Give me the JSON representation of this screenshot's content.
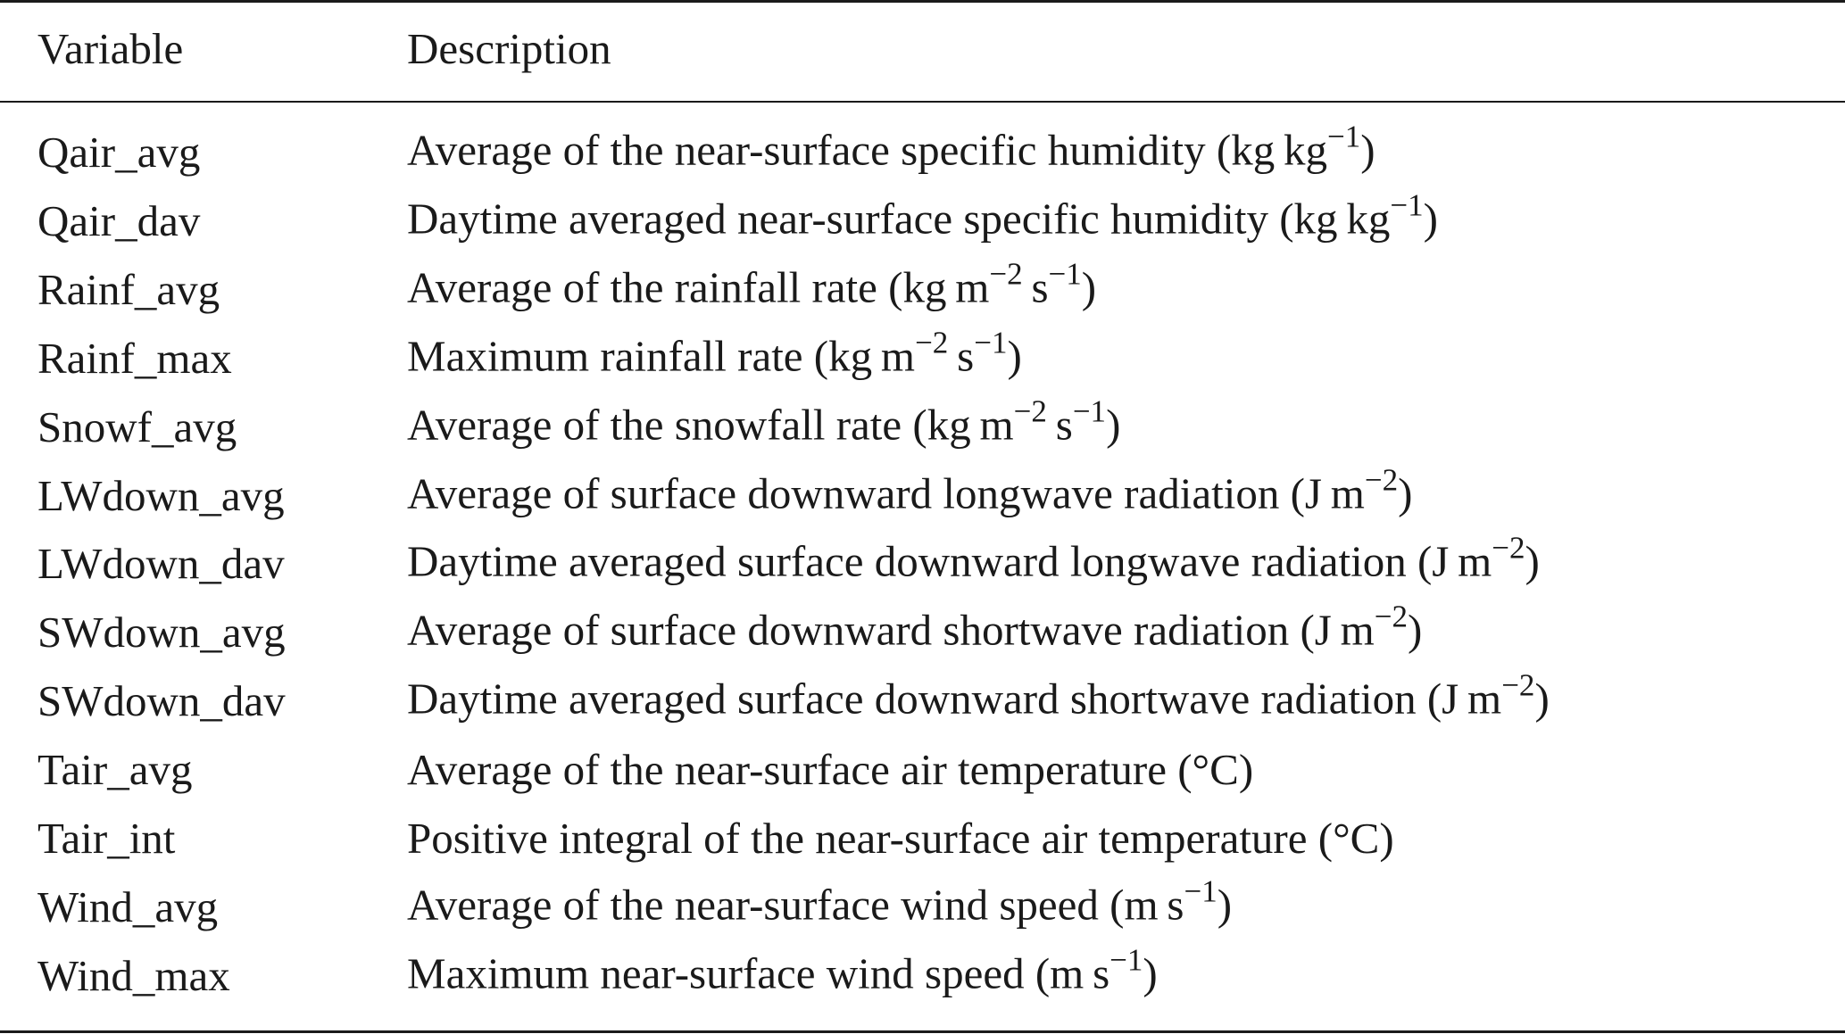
{
  "table": {
    "header": [
      "Variable",
      "Description"
    ],
    "rows": [
      {
        "variable": "Qair_avg",
        "description": [
          {
            "text": "Average of the near-surface specific humidity (kg kg"
          },
          {
            "sup": "−1"
          },
          {
            "text": ")"
          }
        ]
      },
      {
        "variable": "Qair_dav",
        "description": [
          {
            "text": "Daytime averaged near-surface specific humidity (kg kg"
          },
          {
            "sup": "−1"
          },
          {
            "text": ")"
          }
        ]
      },
      {
        "variable": "Rainf_avg",
        "description": [
          {
            "text": "Average of the rainfall rate (kg m"
          },
          {
            "sup": "−2"
          },
          {
            "text": " s"
          },
          {
            "sup": "−1"
          },
          {
            "text": ")"
          }
        ]
      },
      {
        "variable": "Rainf_max",
        "description": [
          {
            "text": "Maximum rainfall rate (kg m"
          },
          {
            "sup": "−2"
          },
          {
            "text": " s"
          },
          {
            "sup": "−1"
          },
          {
            "text": ")"
          }
        ]
      },
      {
        "variable": "Snowf_avg",
        "description": [
          {
            "text": "Average of the snowfall rate (kg m"
          },
          {
            "sup": "−2"
          },
          {
            "text": " s"
          },
          {
            "sup": "−1"
          },
          {
            "text": ")"
          }
        ]
      },
      {
        "variable": "LWdown_avg",
        "description": [
          {
            "text": "Average of surface downward longwave radiation (J m"
          },
          {
            "sup": "−2"
          },
          {
            "text": ")"
          }
        ]
      },
      {
        "variable": "LWdown_dav",
        "description": [
          {
            "text": "Daytime averaged surface downward longwave radiation (J m"
          },
          {
            "sup": "−2"
          },
          {
            "text": ")"
          }
        ]
      },
      {
        "variable": "SWdown_avg",
        "description": [
          {
            "text": "Average of surface downward shortwave radiation (J m"
          },
          {
            "sup": "−2"
          },
          {
            "text": ")"
          }
        ]
      },
      {
        "variable": "SWdown_dav",
        "description": [
          {
            "text": "Daytime averaged surface downward shortwave radiation (J m"
          },
          {
            "sup": "−2"
          },
          {
            "text": ")"
          }
        ]
      },
      {
        "variable": "Tair_avg",
        "description": [
          {
            "text": "Average of the near-surface air temperature (°C)"
          }
        ]
      },
      {
        "variable": "Tair_int",
        "description": [
          {
            "text": "Positive integral of the near-surface air temperature (°C)"
          }
        ]
      },
      {
        "variable": "Wind_avg",
        "description": [
          {
            "text": "Average of the near-surface wind speed (m s"
          },
          {
            "sup": "−1"
          },
          {
            "text": ")"
          }
        ]
      },
      {
        "variable": "Wind_max",
        "description": [
          {
            "text": "Maximum near-surface wind speed (m s"
          },
          {
            "sup": "−1"
          },
          {
            "text": ")"
          }
        ]
      }
    ]
  }
}
